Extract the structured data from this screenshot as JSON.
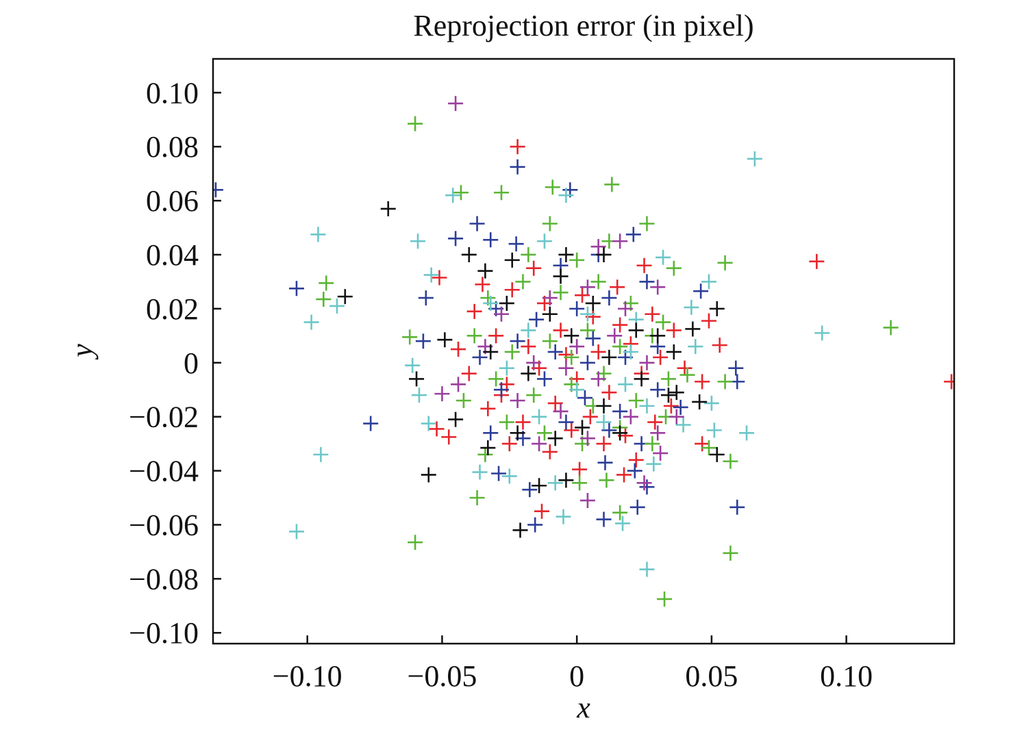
{
  "chart_data": {
    "type": "scatter",
    "title": "Reprojection error (in pixel)",
    "xlabel": "x",
    "ylabel": "y",
    "xlim": [
      -0.135,
      0.14
    ],
    "ylim": [
      -0.104,
      0.1125
    ],
    "grid": false,
    "marker": "plus",
    "xticks": [
      -0.1,
      -0.05,
      0,
      0.05,
      0.1
    ],
    "xtick_labels": [
      "−0.10",
      "−0.05",
      "0",
      "0.05",
      "0.10"
    ],
    "yticks": [
      0.1,
      0.08,
      0.06,
      0.04,
      0.02,
      0,
      -0.02,
      -0.04,
      -0.06,
      -0.08,
      -0.1
    ],
    "ytick_labels": [
      "0.10",
      "0.08",
      "0.06",
      "0.04",
      "0.02",
      "0",
      "−0.02",
      "−0.04",
      "−0.06",
      "−0.08",
      "−0.10"
    ],
    "series": [
      {
        "name": "red",
        "color": "#e5262b",
        "points": [
          [
            -0.022,
            0.08
          ],
          [
            0.089,
            0.0375
          ],
          [
            0.139,
            -0.007
          ],
          [
            -0.013,
            -0.055
          ],
          [
            0.001,
            -0.0395
          ],
          [
            0.0175,
            -0.0415
          ],
          [
            0.0465,
            -0.03
          ],
          [
            0.049,
            0.0155
          ],
          [
            0.0465,
            -0.007
          ],
          [
            0.053,
            0.0065
          ],
          [
            -0.051,
            0.0315
          ],
          [
            -0.052,
            -0.0245
          ],
          [
            -0.0475,
            -0.0275
          ],
          [
            -0.035,
            0.029
          ],
          [
            -0.024,
            0.027
          ],
          [
            -0.012,
            0.022
          ],
          [
            0.002,
            0.025
          ],
          [
            0.015,
            0.028
          ],
          [
            0.028,
            0.018
          ],
          [
            0.036,
            0.012
          ],
          [
            -0.03,
            0.01
          ],
          [
            -0.018,
            0.006
          ],
          [
            -0.006,
            0.012
          ],
          [
            0.008,
            0.004
          ],
          [
            0.02,
            0.007
          ],
          [
            0.031,
            0.002
          ],
          [
            -0.04,
            -0.004
          ],
          [
            -0.026,
            -0.008
          ],
          [
            -0.014,
            -0.002
          ],
          [
            0.0,
            -0.006
          ],
          [
            0.012,
            -0.011
          ],
          [
            0.024,
            -0.004
          ],
          [
            0.035,
            -0.016
          ],
          [
            -0.033,
            -0.017
          ],
          [
            -0.02,
            -0.022
          ],
          [
            -0.008,
            -0.015
          ],
          [
            0.005,
            -0.02
          ],
          [
            0.018,
            -0.027
          ],
          [
            0.029,
            -0.022
          ],
          [
            -0.025,
            -0.03
          ],
          [
            -0.01,
            -0.033
          ],
          [
            0.01,
            -0.03
          ],
          [
            0.022,
            -0.036
          ],
          [
            -0.004,
            0.003
          ],
          [
            0.016,
            0.014
          ],
          [
            -0.044,
            0.005
          ],
          [
            -0.038,
            0.019
          ],
          [
            0.04,
            -0.002
          ],
          [
            -0.016,
            0.035
          ],
          [
            0.025,
            0.036
          ],
          [
            -0.002,
            -0.025
          ],
          [
            0.006,
            0.017
          ],
          [
            -0.028,
            -0.012
          ]
        ]
      },
      {
        "name": "blue",
        "color": "#2c3e98",
        "points": [
          [
            -0.022,
            0.0725
          ],
          [
            -0.134,
            0.064
          ],
          [
            -0.0025,
            0.064
          ],
          [
            -0.104,
            0.0275
          ],
          [
            -0.0765,
            -0.0225
          ],
          [
            0.0595,
            -0.0535
          ],
          [
            -0.0155,
            -0.06
          ],
          [
            0.01,
            -0.058
          ],
          [
            0.0225,
            -0.0535
          ],
          [
            0.059,
            -0.002
          ],
          [
            0.0595,
            -0.007
          ],
          [
            0.046,
            0.0265
          ],
          [
            0.021,
            0.0475
          ],
          [
            -0.037,
            0.0515
          ],
          [
            -0.045,
            0.046
          ],
          [
            -0.032,
            0.0455
          ],
          [
            -0.0225,
            0.044
          ],
          [
            -0.056,
            0.024
          ],
          [
            -0.057,
            0.008
          ],
          [
            -0.029,
            -0.041
          ],
          [
            -0.0175,
            -0.047
          ],
          [
            0.0105,
            -0.037
          ],
          [
            0.0215,
            -0.04
          ],
          [
            0.026,
            -0.046
          ],
          [
            0.0385,
            -0.0165
          ],
          [
            -0.03,
            0.02
          ],
          [
            -0.015,
            0.016
          ],
          [
            0.0,
            0.02
          ],
          [
            0.012,
            0.024
          ],
          [
            0.026,
            0.03
          ],
          [
            -0.036,
            0.002
          ],
          [
            -0.022,
            0.008
          ],
          [
            -0.008,
            0.004
          ],
          [
            0.006,
            0.009
          ],
          [
            0.018,
            0.002
          ],
          [
            0.03,
            0.006
          ],
          [
            -0.028,
            -0.01
          ],
          [
            -0.012,
            -0.006
          ],
          [
            0.003,
            -0.013
          ],
          [
            0.016,
            -0.018
          ],
          [
            0.03,
            -0.01
          ],
          [
            -0.02,
            -0.028
          ],
          [
            -0.004,
            -0.022
          ],
          [
            0.012,
            -0.025
          ],
          [
            0.024,
            -0.03
          ],
          [
            -0.006,
            0.036
          ],
          [
            0.008,
            0.04
          ],
          [
            -0.032,
            -0.026
          ],
          [
            0.004,
            0.0
          ]
        ]
      },
      {
        "name": "green",
        "color": "#5bb535",
        "points": [
          [
            -0.06,
            0.0885
          ],
          [
            -0.043,
            0.063
          ],
          [
            -0.028,
            0.063
          ],
          [
            -0.009,
            0.065
          ],
          [
            0.013,
            0.066
          ],
          [
            -0.093,
            0.0295
          ],
          [
            -0.094,
            0.0235
          ],
          [
            0.055,
            0.037
          ],
          [
            0.1165,
            0.013
          ],
          [
            -0.06,
            -0.0665
          ],
          [
            0.0325,
            -0.0875
          ],
          [
            0.057,
            -0.0705
          ],
          [
            -0.037,
            -0.05
          ],
          [
            0.016,
            -0.0555
          ],
          [
            0.057,
            -0.0365
          ],
          [
            0.055,
            -0.007
          ],
          [
            0.026,
            0.0515
          ],
          [
            0.036,
            0.035
          ],
          [
            -0.01,
            0.0515
          ],
          [
            -0.062,
            0.0095
          ],
          [
            0.001,
            -0.0445
          ],
          [
            0.011,
            -0.0435
          ],
          [
            0.049,
            -0.0315
          ],
          [
            0.033,
            -0.02
          ],
          [
            0.041,
            -0.0045
          ],
          [
            -0.033,
            0.024
          ],
          [
            -0.02,
            0.03
          ],
          [
            -0.006,
            0.026
          ],
          [
            0.008,
            0.03
          ],
          [
            0.02,
            0.022
          ],
          [
            0.032,
            0.015
          ],
          [
            -0.038,
            0.01
          ],
          [
            -0.024,
            0.004
          ],
          [
            -0.01,
            0.008
          ],
          [
            0.004,
            0.012
          ],
          [
            0.016,
            0.006
          ],
          [
            0.028,
            0.01
          ],
          [
            -0.03,
            -0.006
          ],
          [
            -0.016,
            -0.012
          ],
          [
            -0.002,
            -0.008
          ],
          [
            0.01,
            -0.004
          ],
          [
            0.022,
            -0.014
          ],
          [
            0.034,
            -0.006
          ],
          [
            -0.026,
            -0.022
          ],
          [
            -0.012,
            -0.026
          ],
          [
            0.002,
            -0.03
          ],
          [
            0.016,
            -0.024
          ],
          [
            0.028,
            -0.03
          ],
          [
            -0.018,
            0.04
          ],
          [
            0.012,
            0.045
          ],
          [
            -0.002,
            0.002
          ],
          [
            0.006,
            -0.016
          ],
          [
            -0.042,
            -0.014
          ],
          [
            0.0,
            0.038
          ],
          [
            -0.034,
            -0.034
          ]
        ]
      },
      {
        "name": "cyan",
        "color": "#6cc6c8",
        "points": [
          [
            0.066,
            0.0755
          ],
          [
            -0.046,
            0.062
          ],
          [
            -0.004,
            0.062
          ],
          [
            -0.096,
            0.0475
          ],
          [
            -0.089,
            0.021
          ],
          [
            -0.0985,
            0.015
          ],
          [
            0.091,
            0.011
          ],
          [
            -0.095,
            -0.034
          ],
          [
            -0.104,
            -0.0625
          ],
          [
            0.026,
            -0.0765
          ],
          [
            -0.005,
            -0.057
          ],
          [
            0.017,
            -0.0595
          ],
          [
            0.049,
            0.03
          ],
          [
            0.032,
            0.039
          ],
          [
            -0.059,
            0.045
          ],
          [
            -0.054,
            0.0325
          ],
          [
            -0.061,
            -0.001
          ],
          [
            -0.0585,
            -0.012
          ],
          [
            -0.055,
            -0.0225
          ],
          [
            -0.036,
            -0.0405
          ],
          [
            -0.025,
            -0.042
          ],
          [
            -0.008,
            -0.0445
          ],
          [
            0.0285,
            -0.0375
          ],
          [
            0.051,
            -0.025
          ],
          [
            0.063,
            -0.026
          ],
          [
            0.05,
            -0.015
          ],
          [
            0.0395,
            -0.023
          ],
          [
            0.044,
            0.006
          ],
          [
            0.0425,
            0.0205
          ],
          [
            -0.032,
            0.022
          ],
          [
            -0.018,
            0.012
          ],
          [
            0.004,
            0.018
          ],
          [
            0.022,
            0.016
          ],
          [
            -0.026,
            -0.002
          ],
          [
            0.0,
            -0.01
          ],
          [
            0.018,
            -0.008
          ],
          [
            -0.014,
            -0.02
          ],
          [
            0.01,
            -0.022
          ],
          [
            0.026,
            -0.016
          ],
          [
            -0.012,
            0.045
          ],
          [
            0.02,
            0.004
          ]
        ]
      },
      {
        "name": "purple",
        "color": "#9a3f9e",
        "points": [
          [
            -0.045,
            0.096
          ],
          [
            0.004,
            -0.051
          ],
          [
            -0.05,
            -0.0115
          ],
          [
            0.025,
            -0.0445
          ],
          [
            0.031,
            -0.0335
          ],
          [
            0.037,
            -0.02
          ],
          [
            -0.028,
            0.018
          ],
          [
            -0.01,
            0.024
          ],
          [
            0.004,
            0.028
          ],
          [
            0.018,
            0.02
          ],
          [
            0.03,
            0.028
          ],
          [
            -0.034,
            0.006
          ],
          [
            -0.016,
            0.0
          ],
          [
            0.0,
            0.006
          ],
          [
            0.014,
            0.01
          ],
          [
            0.026,
            0.0
          ],
          [
            -0.022,
            -0.014
          ],
          [
            -0.006,
            -0.018
          ],
          [
            0.008,
            -0.006
          ],
          [
            0.02,
            -0.02
          ],
          [
            0.03,
            -0.026
          ],
          [
            -0.014,
            -0.03
          ],
          [
            0.004,
            -0.028
          ],
          [
            -0.044,
            -0.008
          ],
          [
            0.008,
            0.043
          ],
          [
            0.016,
            0.045
          ],
          [
            -0.004,
            -0.002
          ]
        ]
      },
      {
        "name": "black",
        "color": "#111111",
        "points": [
          [
            -0.07,
            0.057
          ],
          [
            -0.086,
            0.0245
          ],
          [
            -0.055,
            -0.0415
          ],
          [
            -0.021,
            -0.062
          ],
          [
            0.052,
            -0.034
          ],
          [
            0.052,
            0.02
          ],
          [
            -0.04,
            0.04
          ],
          [
            -0.0595,
            -0.006
          ],
          [
            -0.049,
            0.0085
          ],
          [
            -0.045,
            -0.021
          ],
          [
            -0.033,
            -0.0315
          ],
          [
            -0.014,
            -0.0455
          ],
          [
            -0.004,
            -0.0435
          ],
          [
            0.0455,
            -0.0145
          ],
          [
            0.043,
            0.0125
          ],
          [
            -0.024,
            0.038
          ],
          [
            -0.034,
            0.034
          ],
          [
            -0.006,
            0.032
          ],
          [
            0.01,
            0.04
          ],
          [
            -0.026,
            0.022
          ],
          [
            -0.01,
            0.018
          ],
          [
            0.006,
            0.022
          ],
          [
            0.022,
            0.012
          ],
          [
            0.03,
            0.01
          ],
          [
            -0.032,
            0.004
          ],
          [
            -0.018,
            -0.004
          ],
          [
            -0.002,
            0.01
          ],
          [
            0.012,
            0.002
          ],
          [
            0.024,
            -0.006
          ],
          [
            0.036,
            0.004
          ],
          [
            -0.022,
            -0.026
          ],
          [
            -0.008,
            -0.028
          ],
          [
            0.01,
            -0.016
          ],
          [
            0.016,
            -0.026
          ],
          [
            0.034,
            -0.012
          ],
          [
            0.002,
            -0.024
          ],
          [
            -0.004,
            0.04
          ],
          [
            0.037,
            -0.011
          ]
        ]
      }
    ]
  }
}
